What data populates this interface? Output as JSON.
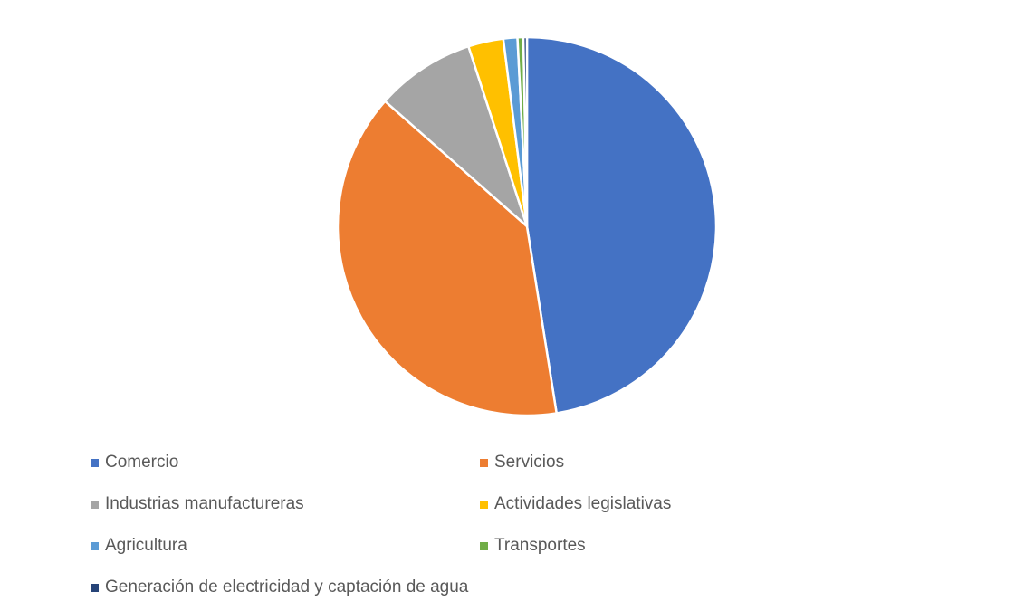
{
  "chart_data": {
    "type": "pie",
    "title": "",
    "legend_position": "bottom",
    "categories": [
      "Comercio",
      "Servicios",
      "Industrias manufactureras",
      "Actividades legislativas",
      "Agricultura",
      "Transportes",
      "Generación de electricidad y captación de agua"
    ],
    "values": [
      47.5,
      39.0,
      8.5,
      3.0,
      1.2,
      0.5,
      0.3
    ],
    "value_unit": "percent",
    "colors": [
      "#4472c4",
      "#ed7d31",
      "#a5a5a5",
      "#ffc000",
      "#5b9bd5",
      "#70ad47",
      "#264478"
    ]
  }
}
